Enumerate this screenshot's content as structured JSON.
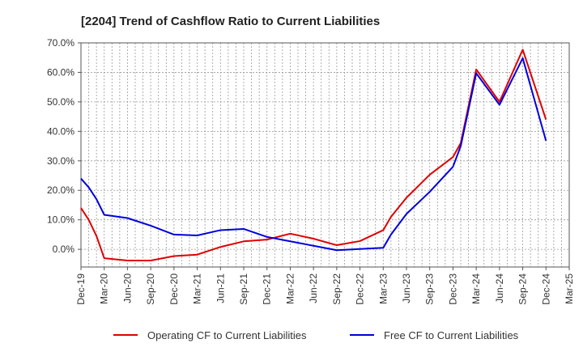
{
  "chart_data": {
    "type": "line",
    "title": "[2204]  Trend of Cashflow Ratio to Current Liabilities",
    "xlabel": "",
    "ylabel": "",
    "ylim": [
      -6,
      70
    ],
    "yticks": [
      "70.0%",
      "60.0%",
      "50.0%",
      "40.0%",
      "30.0%",
      "20.0%",
      "10.0%",
      "0.0%"
    ],
    "ytick_values": [
      70,
      60,
      50,
      40,
      30,
      20,
      10,
      0
    ],
    "x": [
      "Dec-19",
      "Jan-20",
      "Feb-20",
      "Mar-20",
      "Apr-20",
      "May-20",
      "Jun-20",
      "Jul-20",
      "Aug-20",
      "Sep-20",
      "Oct-20",
      "Nov-20",
      "Dec-20",
      "Jan-21",
      "Feb-21",
      "Mar-21",
      "Apr-21",
      "May-21",
      "Jun-21",
      "Jul-21",
      "Aug-21",
      "Sep-21",
      "Oct-21",
      "Nov-21",
      "Dec-21",
      "Jan-22",
      "Feb-22",
      "Mar-22",
      "Apr-22",
      "May-22",
      "Jun-22",
      "Jul-22",
      "Aug-22",
      "Sep-22",
      "Oct-22",
      "Nov-22",
      "Dec-22",
      "Jan-23",
      "Feb-23",
      "Mar-23",
      "Apr-23",
      "May-23",
      "Jun-23",
      "Jul-23",
      "Aug-23",
      "Sep-23",
      "Oct-23",
      "Nov-23",
      "Dec-23",
      "Jan-24",
      "Feb-24",
      "Mar-24",
      "Apr-24",
      "May-24",
      "Jun-24",
      "Jul-24",
      "Aug-24",
      "Sep-24",
      "Oct-24",
      "Nov-24",
      "Dec-24",
      "Jan-25",
      "Feb-25",
      "Mar-25"
    ],
    "xtick_labels": [
      "Dec-19",
      "Mar-20",
      "Jun-20",
      "Sep-20",
      "Dec-20",
      "Mar-21",
      "Jun-21",
      "Sep-21",
      "Dec-21",
      "Mar-22",
      "Jun-22",
      "Sep-22",
      "Dec-22",
      "Mar-23",
      "Jun-23",
      "Sep-23",
      "Dec-23",
      "Mar-24",
      "Jun-24",
      "Sep-24",
      "Dec-24",
      "Mar-25"
    ],
    "series": [
      {
        "name": "Operating CF to Current Liabilities",
        "color": "#e00000",
        "points": [
          [
            "Dec-19",
            14.0
          ],
          [
            "Jan-20",
            10.0
          ],
          [
            "Feb-20",
            4.5
          ],
          [
            "Mar-20",
            -3.0
          ],
          [
            "Jun-20",
            -3.8
          ],
          [
            "Sep-20",
            -3.8
          ],
          [
            "Dec-20",
            -2.3
          ],
          [
            "Mar-21",
            -1.8
          ],
          [
            "Jun-21",
            0.8
          ],
          [
            "Sep-21",
            2.7
          ],
          [
            "Dec-21",
            3.3
          ],
          [
            "Mar-22",
            5.3
          ],
          [
            "Jun-22",
            3.6
          ],
          [
            "Sep-22",
            1.4
          ],
          [
            "Dec-22",
            2.8
          ],
          [
            "Mar-23",
            6.5
          ],
          [
            "Apr-23",
            11.0
          ],
          [
            "Jun-23",
            17.5
          ],
          [
            "Sep-23",
            25.3
          ],
          [
            "Dec-23",
            31.3
          ],
          [
            "Jan-24",
            36.0
          ],
          [
            "Mar-24",
            61.0
          ],
          [
            "Jun-24",
            50.0
          ],
          [
            "Sep-24",
            67.7
          ],
          [
            "Dec-24",
            44.0
          ]
        ]
      },
      {
        "name": "Free CF to Current Liabilities",
        "color": "#0000dd",
        "points": [
          [
            "Dec-19",
            24.0
          ],
          [
            "Jan-20",
            21.0
          ],
          [
            "Feb-20",
            17.0
          ],
          [
            "Mar-20",
            11.7
          ],
          [
            "Jun-20",
            10.6
          ],
          [
            "Sep-20",
            8.0
          ],
          [
            "Dec-20",
            5.0
          ],
          [
            "Mar-21",
            4.7
          ],
          [
            "Jun-21",
            6.5
          ],
          [
            "Sep-21",
            6.9
          ],
          [
            "Dec-21",
            4.2
          ],
          [
            "Mar-22",
            2.7
          ],
          [
            "Jun-22",
            1.2
          ],
          [
            "Sep-22",
            -0.3
          ],
          [
            "Dec-22",
            0.1
          ],
          [
            "Mar-23",
            0.5
          ],
          [
            "Apr-23",
            5.0
          ],
          [
            "Jun-23",
            12.0
          ],
          [
            "Sep-23",
            19.5
          ],
          [
            "Dec-23",
            28.0
          ],
          [
            "Jan-24",
            35.0
          ],
          [
            "Mar-24",
            59.7
          ],
          [
            "Jun-24",
            49.0
          ],
          [
            "Sep-24",
            64.8
          ],
          [
            "Dec-24",
            36.8
          ]
        ]
      }
    ],
    "grid": true,
    "legend_position": "bottom"
  }
}
